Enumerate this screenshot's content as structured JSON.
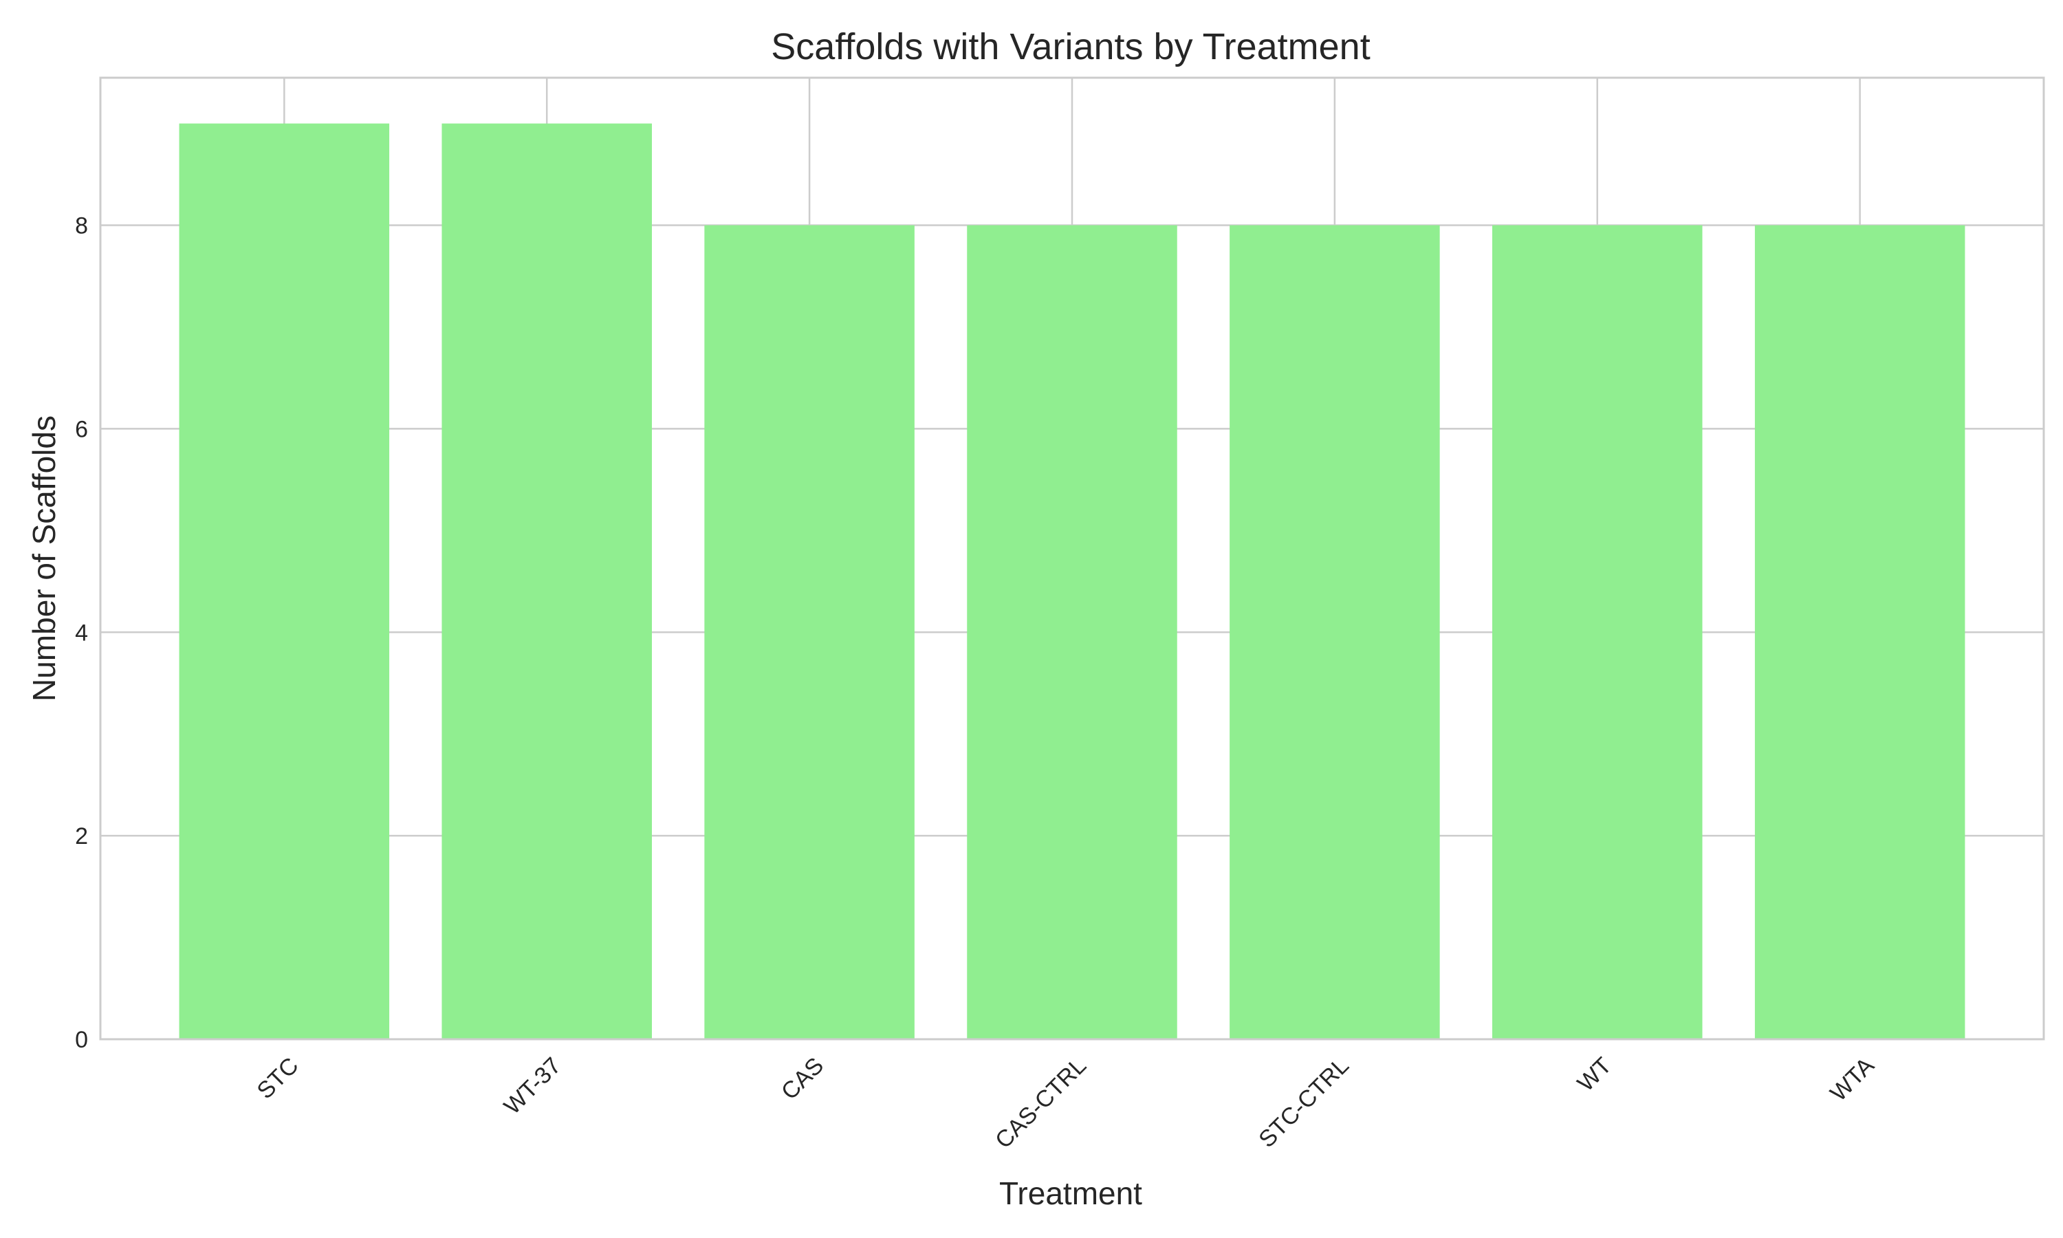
{
  "chart_data": {
    "type": "bar",
    "title": "Scaffolds with Variants by Treatment",
    "xlabel": "Treatment",
    "ylabel": "Number of Scaffolds",
    "categories": [
      "STC",
      "WT-37",
      "CAS",
      "CAS-CTRL",
      "STC-CTRL",
      "WT",
      "WTA"
    ],
    "values": [
      9,
      9,
      8,
      8,
      8,
      8,
      8
    ],
    "ylim": [
      0,
      9.45
    ],
    "yticks": [
      0,
      2,
      4,
      6,
      8
    ],
    "bar_color": "#90ee90",
    "grid": true,
    "xtick_rotation": 45
  }
}
